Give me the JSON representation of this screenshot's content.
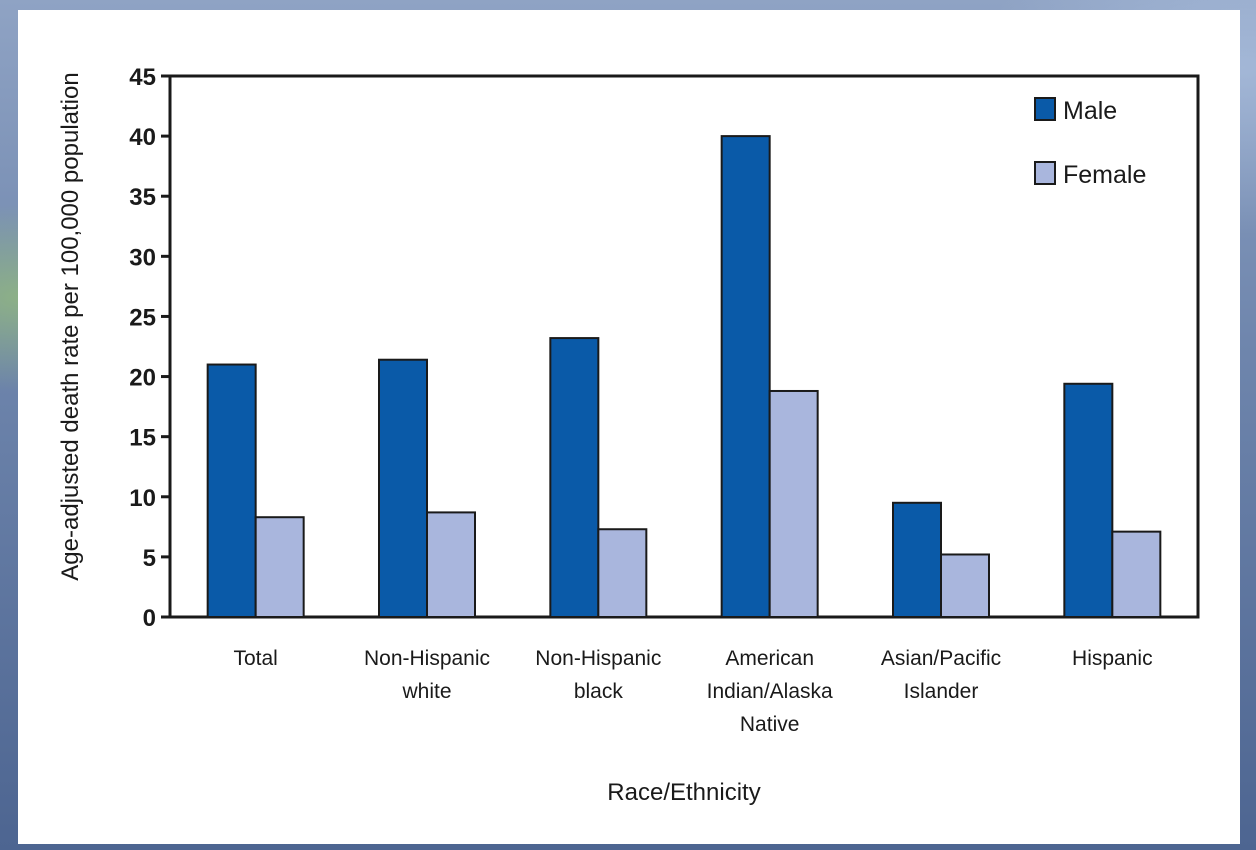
{
  "chart_data": {
    "type": "bar",
    "xlabel": "Race/Ethnicity",
    "ylabel": "Age-adjusted death rate per 100,000 population",
    "ylim": [
      0,
      45
    ],
    "yticks": [
      0,
      5,
      10,
      15,
      20,
      25,
      30,
      35,
      40,
      45
    ],
    "categories": [
      [
        "Total"
      ],
      [
        "Non-Hispanic",
        "white"
      ],
      [
        "Non-Hispanic",
        "black"
      ],
      [
        "American",
        "Indian/Alaska",
        "Native"
      ],
      [
        "Asian/Pacific",
        "Islander"
      ],
      [
        "Hispanic"
      ]
    ],
    "series": [
      {
        "name": "Male",
        "color": "#0a5aa8",
        "values": [
          21.0,
          21.4,
          23.2,
          40.0,
          9.5,
          19.4
        ]
      },
      {
        "name": "Female",
        "color": "#a9b6dd",
        "values": [
          8.3,
          8.7,
          7.3,
          18.8,
          5.2,
          7.1
        ]
      }
    ],
    "legend_position": "top-right",
    "grid": false
  }
}
